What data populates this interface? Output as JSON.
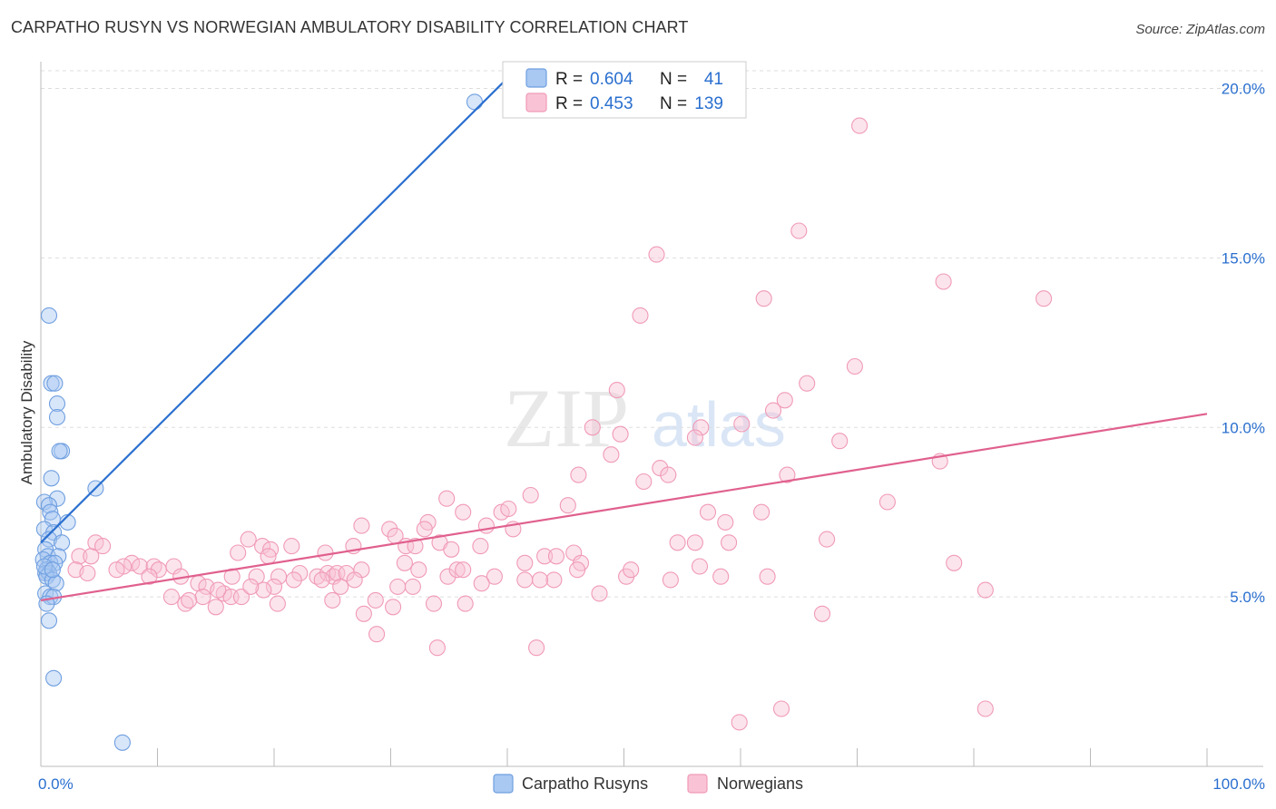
{
  "title": "CARPATHO RUSYN VS NORWEGIAN AMBULATORY DISABILITY CORRELATION CHART",
  "source": "Source: ZipAtlas.com",
  "watermark": {
    "zip": "ZIP",
    "atlas": "atlas"
  },
  "legend_stats": [
    {
      "r_label": "R =",
      "r_value": "0.604",
      "n_label": "N =",
      "n_value": "41"
    },
    {
      "r_label": "R =",
      "r_value": "0.453",
      "n_label": "N =",
      "n_value": "139"
    }
  ],
  "chart_data": {
    "type": "scatter",
    "title": "CARPATHO RUSYN VS NORWEGIAN AMBULATORY DISABILITY CORRELATION CHART",
    "xlabel": "",
    "ylabel": "Ambulatory Disability",
    "xlim": [
      0,
      100
    ],
    "ylim": [
      0,
      20.5
    ],
    "x_tick_labels": [
      "0.0%",
      "100.0%"
    ],
    "y_ticks": [
      5,
      10,
      15,
      20
    ],
    "y_tick_labels": [
      "5.0%",
      "10.0%",
      "15.0%",
      "20.0%"
    ],
    "grid": true,
    "legend_position": "bottom",
    "series": [
      {
        "name": "Carpatho Rusyns",
        "color": "#6f9fe0",
        "fill": "#a9c8f2",
        "line_color": "#2a6fcf",
        "r": 0.604,
        "n": 41,
        "trend": [
          [
            0,
            6.6
          ],
          [
            40,
            20.3
          ]
        ],
        "points": [
          [
            37.2,
            19.6
          ],
          [
            0.7,
            13.3
          ],
          [
            0.9,
            11.3
          ],
          [
            1.2,
            11.3
          ],
          [
            1.4,
            10.7
          ],
          [
            1.4,
            10.3
          ],
          [
            1.8,
            9.3
          ],
          [
            1.6,
            9.3
          ],
          [
            0.9,
            8.5
          ],
          [
            4.7,
            8.2
          ],
          [
            1.4,
            7.9
          ],
          [
            0.3,
            7.8
          ],
          [
            0.7,
            7.7
          ],
          [
            0.8,
            7.5
          ],
          [
            1.0,
            7.3
          ],
          [
            2.3,
            7.2
          ],
          [
            0.3,
            7.0
          ],
          [
            1.1,
            6.9
          ],
          [
            0.7,
            6.7
          ],
          [
            1.8,
            6.6
          ],
          [
            0.4,
            6.4
          ],
          [
            0.6,
            6.2
          ],
          [
            1.5,
            6.2
          ],
          [
            0.2,
            6.1
          ],
          [
            0.8,
            6.0
          ],
          [
            1.2,
            6.0
          ],
          [
            0.5,
            5.8
          ],
          [
            0.4,
            5.7
          ],
          [
            0.7,
            5.7
          ],
          [
            0.5,
            5.6
          ],
          [
            1.0,
            5.5
          ],
          [
            1.3,
            5.4
          ],
          [
            0.4,
            5.1
          ],
          [
            0.8,
            5.0
          ],
          [
            1.1,
            5.0
          ],
          [
            0.5,
            4.8
          ],
          [
            0.7,
            4.3
          ],
          [
            1.1,
            2.6
          ],
          [
            7.0,
            0.7
          ],
          [
            0.3,
            5.9
          ],
          [
            1.0,
            5.8
          ]
        ]
      },
      {
        "name": "Norwegians",
        "color": "#f09ab7",
        "fill": "#f9c3d5",
        "line_color": "#e0608e",
        "r": 0.453,
        "n": 139,
        "trend": [
          [
            0,
            4.9
          ],
          [
            100,
            10.4
          ]
        ],
        "points": [
          [
            70.2,
            18.9
          ],
          [
            65.0,
            15.8
          ],
          [
            52.8,
            15.1
          ],
          [
            77.4,
            14.3
          ],
          [
            62.0,
            13.8
          ],
          [
            86.0,
            13.8
          ],
          [
            51.4,
            13.3
          ],
          [
            69.8,
            11.8
          ],
          [
            65.7,
            11.3
          ],
          [
            49.4,
            11.1
          ],
          [
            63.8,
            10.8
          ],
          [
            62.8,
            10.5
          ],
          [
            47.3,
            10.0
          ],
          [
            56.6,
            10.0
          ],
          [
            60.1,
            10.1
          ],
          [
            49.7,
            9.8
          ],
          [
            56.1,
            9.7
          ],
          [
            68.5,
            9.6
          ],
          [
            48.9,
            9.2
          ],
          [
            77.1,
            9.0
          ],
          [
            46.1,
            8.6
          ],
          [
            53.1,
            8.8
          ],
          [
            53.8,
            8.6
          ],
          [
            64.0,
            8.6
          ],
          [
            51.7,
            8.4
          ],
          [
            42.0,
            8.0
          ],
          [
            34.8,
            7.9
          ],
          [
            45.2,
            7.7
          ],
          [
            36.2,
            7.5
          ],
          [
            39.5,
            7.5
          ],
          [
            40.1,
            7.6
          ],
          [
            57.2,
            7.5
          ],
          [
            61.8,
            7.5
          ],
          [
            72.6,
            7.8
          ],
          [
            29.9,
            7.0
          ],
          [
            27.5,
            7.1
          ],
          [
            33.2,
            7.2
          ],
          [
            32.9,
            7.0
          ],
          [
            38.2,
            7.1
          ],
          [
            40.5,
            7.0
          ],
          [
            58.7,
            7.2
          ],
          [
            30.4,
            6.8
          ],
          [
            17.8,
            6.7
          ],
          [
            34.2,
            6.6
          ],
          [
            37.7,
            6.5
          ],
          [
            19.0,
            6.5
          ],
          [
            21.5,
            6.5
          ],
          [
            26.8,
            6.5
          ],
          [
            31.3,
            6.5
          ],
          [
            32.1,
            6.5
          ],
          [
            35.2,
            6.4
          ],
          [
            45.7,
            6.3
          ],
          [
            54.6,
            6.6
          ],
          [
            56.1,
            6.6
          ],
          [
            59.0,
            6.6
          ],
          [
            67.4,
            6.7
          ],
          [
            16.9,
            6.3
          ],
          [
            19.7,
            6.4
          ],
          [
            19.5,
            6.2
          ],
          [
            24.4,
            6.3
          ],
          [
            31.2,
            6.0
          ],
          [
            41.5,
            6.0
          ],
          [
            43.2,
            6.2
          ],
          [
            44.2,
            6.2
          ],
          [
            46.3,
            6.0
          ],
          [
            4.7,
            6.6
          ],
          [
            5.3,
            6.5
          ],
          [
            3.3,
            6.2
          ],
          [
            4.3,
            6.2
          ],
          [
            7.8,
            6.0
          ],
          [
            7.1,
            5.9
          ],
          [
            8.5,
            5.9
          ],
          [
            9.7,
            5.9
          ],
          [
            10.1,
            5.8
          ],
          [
            6.5,
            5.8
          ],
          [
            9.3,
            5.6
          ],
          [
            11.4,
            5.9
          ],
          [
            12.0,
            5.6
          ],
          [
            16.4,
            5.6
          ],
          [
            18.5,
            5.6
          ],
          [
            20.4,
            5.6
          ],
          [
            22.2,
            5.7
          ],
          [
            23.7,
            5.6
          ],
          [
            24.6,
            5.7
          ],
          [
            25.1,
            5.6
          ],
          [
            25.4,
            5.7
          ],
          [
            26.2,
            5.7
          ],
          [
            27.5,
            5.8
          ],
          [
            32.4,
            5.8
          ],
          [
            34.9,
            5.6
          ],
          [
            35.7,
            5.8
          ],
          [
            36.2,
            5.8
          ],
          [
            38.9,
            5.6
          ],
          [
            44.0,
            5.5
          ],
          [
            46.0,
            5.8
          ],
          [
            50.2,
            5.6
          ],
          [
            50.6,
            5.8
          ],
          [
            54.0,
            5.5
          ],
          [
            56.5,
            5.9
          ],
          [
            58.3,
            5.6
          ],
          [
            62.3,
            5.6
          ],
          [
            78.3,
            6.0
          ],
          [
            3.0,
            5.8
          ],
          [
            4.0,
            5.7
          ],
          [
            13.5,
            5.4
          ],
          [
            14.2,
            5.3
          ],
          [
            15.7,
            5.1
          ],
          [
            16.3,
            5.0
          ],
          [
            20.0,
            5.3
          ],
          [
            21.7,
            5.5
          ],
          [
            24.1,
            5.5
          ],
          [
            25.7,
            5.3
          ],
          [
            26.9,
            5.5
          ],
          [
            30.6,
            5.3
          ],
          [
            31.9,
            5.3
          ],
          [
            37.8,
            5.4
          ],
          [
            41.5,
            5.5
          ],
          [
            42.8,
            5.5
          ],
          [
            47.9,
            5.1
          ],
          [
            11.2,
            5.0
          ],
          [
            12.4,
            4.8
          ],
          [
            13.9,
            5.0
          ],
          [
            15.2,
            5.2
          ],
          [
            17.2,
            5.0
          ],
          [
            19.1,
            5.2
          ],
          [
            20.3,
            4.8
          ],
          [
            25.0,
            4.9
          ],
          [
            28.7,
            4.9
          ],
          [
            30.2,
            4.7
          ],
          [
            33.7,
            4.8
          ],
          [
            36.4,
            4.8
          ],
          [
            15.0,
            4.7
          ],
          [
            12.7,
            4.9
          ],
          [
            81.0,
            5.2
          ],
          [
            27.7,
            4.5
          ],
          [
            28.8,
            3.9
          ],
          [
            34.0,
            3.5
          ],
          [
            42.5,
            3.5
          ],
          [
            63.5,
            1.7
          ],
          [
            59.9,
            1.3
          ],
          [
            81.0,
            1.7
          ],
          [
            67.0,
            4.5
          ],
          [
            18.0,
            5.3
          ]
        ]
      }
    ]
  }
}
